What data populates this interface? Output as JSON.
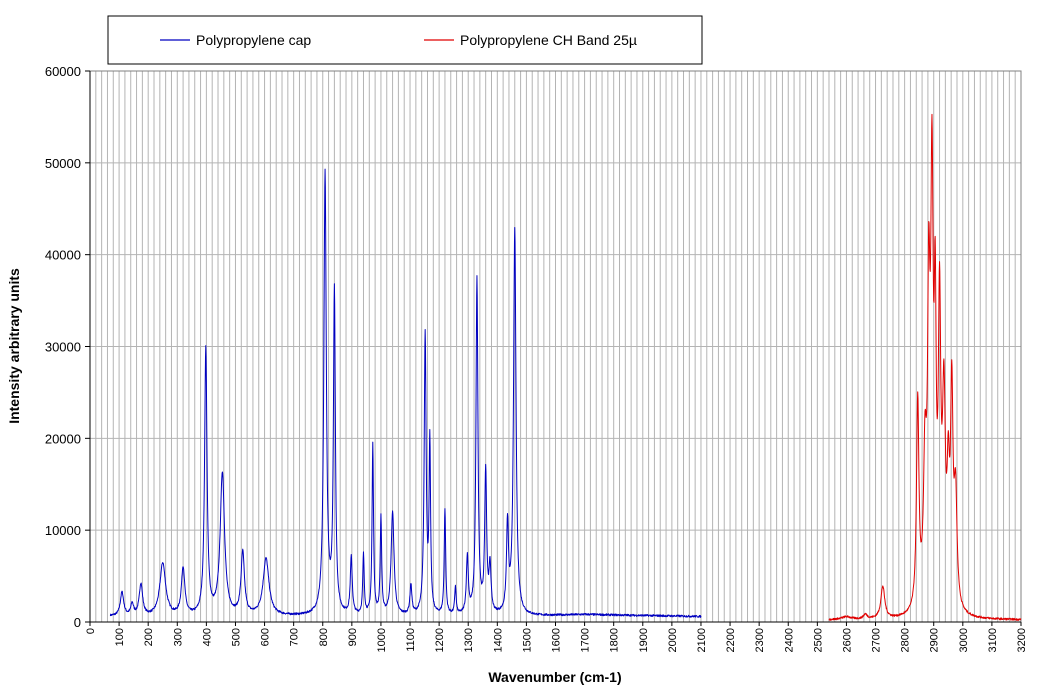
{
  "chart_data": {
    "type": "line",
    "xlabel": "Wavenumber (cm-1)",
    "ylabel": "Intensity arbitrary units",
    "xlim": [
      0,
      3200
    ],
    "ylim": [
      0,
      60000
    ],
    "x_ticks": [
      "0",
      "100",
      "200",
      "300",
      "400",
      "500",
      "600",
      "700",
      "800",
      "900",
      "1000",
      "1100",
      "1200",
      "1300",
      "1400",
      "1500",
      "1600",
      "1700",
      "1800",
      "1900",
      "2000",
      "2100",
      "2200",
      "2300",
      "2400",
      "2500",
      "2600",
      "2700",
      "2800",
      "2900",
      "3000",
      "3100",
      "3200"
    ],
    "y_ticks": [
      "0",
      "10000",
      "20000",
      "30000",
      "40000",
      "50000",
      "60000"
    ],
    "grid": true,
    "legend_position": "top",
    "series": [
      {
        "name": "Polypropylene cap",
        "color": "#0000c0",
        "x_range": [
          70,
          2100
        ],
        "baseline": [
          [
            70,
            600
          ],
          [
            150,
            500
          ],
          [
            700,
            600
          ],
          [
            1500,
            600
          ],
          [
            1700,
            800
          ],
          [
            2100,
            600
          ]
        ],
        "peaks": [
          [
            110,
            2600,
            7
          ],
          [
            145,
            1300,
            6
          ],
          [
            175,
            3500,
            7
          ],
          [
            250,
            5800,
            12
          ],
          [
            320,
            5200,
            7
          ],
          [
            398,
            29000,
            5
          ],
          [
            455,
            15500,
            9
          ],
          [
            525,
            6800,
            7
          ],
          [
            605,
            6200,
            12
          ],
          [
            808,
            48000,
            5
          ],
          [
            840,
            35000,
            4
          ],
          [
            898,
            6200,
            4
          ],
          [
            940,
            6500,
            3
          ],
          [
            972,
            18500,
            3
          ],
          [
            1000,
            10500,
            3
          ],
          [
            1040,
            11200,
            6
          ],
          [
            1103,
            3200,
            4
          ],
          [
            1152,
            30500,
            4
          ],
          [
            1168,
            18500,
            3
          ],
          [
            1220,
            11500,
            3
          ],
          [
            1256,
            3000,
            3
          ],
          [
            1297,
            6200,
            4
          ],
          [
            1330,
            36500,
            4
          ],
          [
            1360,
            15500,
            4
          ],
          [
            1375,
            5000,
            4
          ],
          [
            1435,
            9500,
            4
          ],
          [
            1460,
            42000,
            5
          ]
        ]
      },
      {
        "name": "Polypropylene CH Band 25µ",
        "color": "#e00000",
        "x_range": [
          2540,
          3200
        ],
        "baseline": [
          [
            2540,
            200
          ],
          [
            3200,
            200
          ]
        ],
        "peaks": [
          [
            2600,
            300,
            20
          ],
          [
            2665,
            500,
            8
          ],
          [
            2725,
            3500,
            8
          ],
          [
            2845,
            22500,
            5
          ],
          [
            2870,
            15000,
            6
          ],
          [
            2883,
            31000,
            5
          ],
          [
            2894,
            43500,
            5
          ],
          [
            2905,
            28000,
            4
          ],
          [
            2920,
            31000,
            5
          ],
          [
            2935,
            21500,
            6
          ],
          [
            2950,
            12000,
            5
          ],
          [
            2962,
            22500,
            5
          ],
          [
            2975,
            12000,
            6
          ]
        ]
      }
    ]
  }
}
